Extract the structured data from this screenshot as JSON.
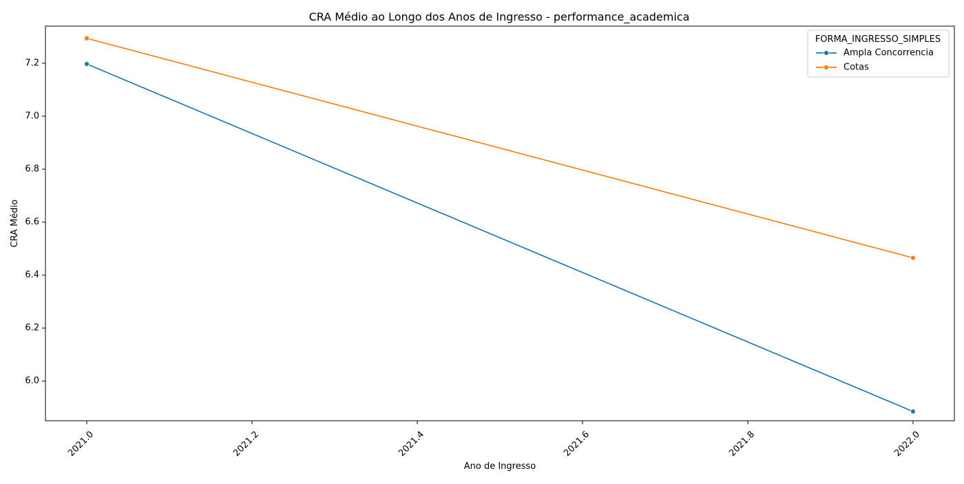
{
  "chart_data": {
    "type": "line",
    "title": "CRA Médio ao Longo dos Anos de Ingresso - performance_academica",
    "xlabel": "Ano de Ingresso",
    "ylabel": "CRA Médio",
    "xlim": [
      2020.95,
      2022.05
    ],
    "ylim": [
      5.85,
      7.34
    ],
    "x_ticks": [
      2021.0,
      2021.2,
      2021.4,
      2021.6,
      2021.8,
      2022.0
    ],
    "x_tick_labels": [
      "2021.0",
      "2021.2",
      "2021.4",
      "2021.6",
      "2021.8",
      "2022.0"
    ],
    "x_tick_rotation_deg": 45,
    "y_ticks": [
      6.0,
      6.2,
      6.4,
      6.6,
      6.8,
      7.0,
      7.2
    ],
    "y_tick_labels": [
      "6.0",
      "6.2",
      "6.4",
      "6.6",
      "6.8",
      "7.0",
      "7.2"
    ],
    "grid": false,
    "legend": {
      "title": "FORMA_INGRESSO_SIMPLES",
      "placement": "top-right"
    },
    "series": [
      {
        "name": "Ampla Concorrencia",
        "color": "#1f77b4",
        "marker": "circle",
        "x": [
          2021,
          2022
        ],
        "y": [
          7.197,
          5.885
        ]
      },
      {
        "name": "Cotas",
        "color": "#ff7f0e",
        "marker": "circle",
        "x": [
          2021,
          2022
        ],
        "y": [
          7.294,
          6.465
        ]
      }
    ]
  }
}
